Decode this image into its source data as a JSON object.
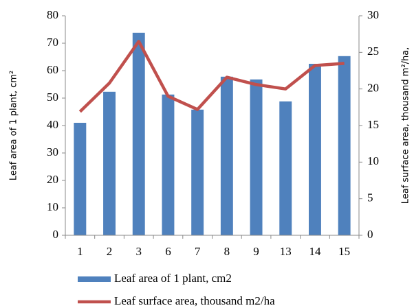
{
  "chart_data": {
    "type": "bar-line",
    "categories": [
      "1",
      "2",
      "3",
      "6",
      "7",
      "8",
      "9",
      "13",
      "14",
      "15"
    ],
    "series": [
      {
        "name": "Leaf area of 1 plant, cm2",
        "type": "bar",
        "color": "#4f81bd",
        "values": [
          41,
          52.3,
          73.8,
          51.3,
          45.8,
          57.8,
          56.8,
          48.8,
          62.5,
          65.3
        ]
      },
      {
        "name": "Leaf surface area, thousand m2/ha",
        "type": "line",
        "axis": "y2",
        "color": "#c0504d",
        "values": [
          16.9,
          20.8,
          26.5,
          19.0,
          17.2,
          21.6,
          20.6,
          20.0,
          23.2,
          23.5
        ]
      }
    ],
    "ylabel": "Leaf area of 1 plant, cm²",
    "y2label": "Leaf surface area, thousand m²/ha,",
    "ylim": [
      0,
      80
    ],
    "yticks": [
      0,
      10,
      20,
      30,
      40,
      50,
      60,
      70,
      80
    ],
    "y2lim": [
      0,
      30
    ],
    "y2ticks": [
      0,
      5,
      10,
      15,
      20,
      25,
      30
    ],
    "legend": "bottom"
  }
}
